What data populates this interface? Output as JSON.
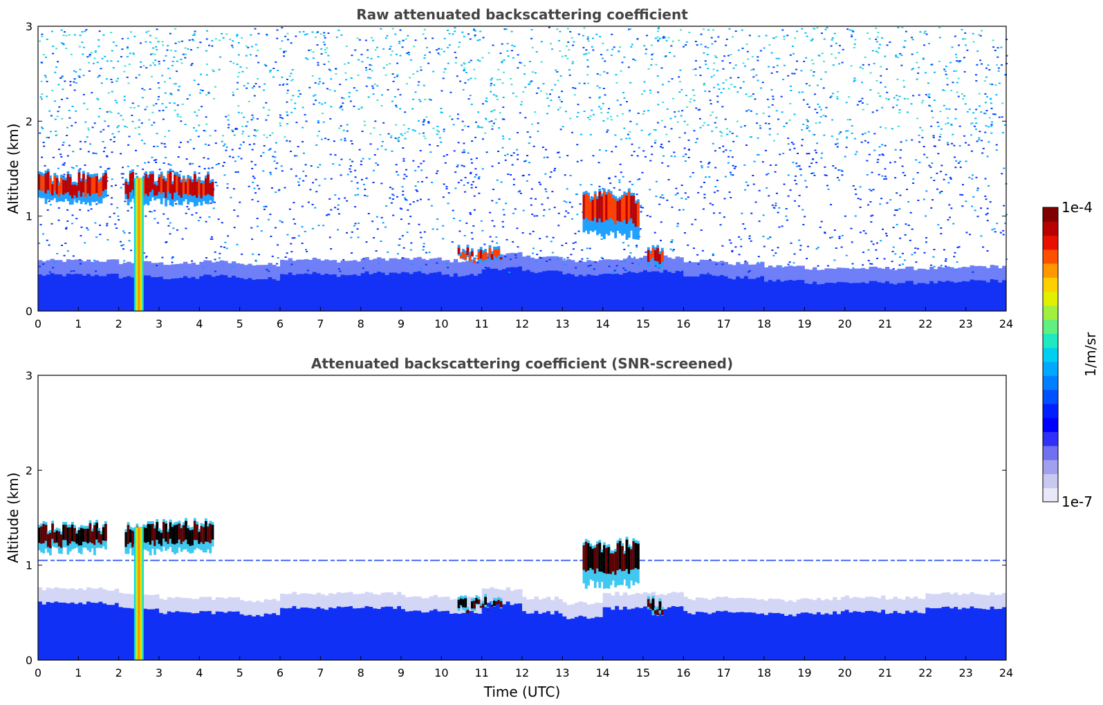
{
  "chart_data": [
    {
      "type": "heatmap",
      "title": "Raw attenuated backscattering coefficient",
      "xlabel": "",
      "ylabel": "Altitude (km)",
      "xlim": [
        0,
        24
      ],
      "ylim": [
        0,
        3
      ],
      "x_ticks": [
        "0",
        "1",
        "2",
        "3",
        "4",
        "5",
        "6",
        "7",
        "8",
        "9",
        "10",
        "11",
        "12",
        "13",
        "14",
        "15",
        "16",
        "17",
        "18",
        "19",
        "20",
        "21",
        "22",
        "23",
        "24"
      ],
      "y_ticks": [
        "0",
        "1",
        "2",
        "3"
      ],
      "boundary_layer_top_km": [
        0.38,
        0.38,
        0.36,
        0.35,
        0.37,
        0.34,
        0.4,
        0.38,
        0.4,
        0.4,
        0.38,
        0.45,
        0.42,
        0.38,
        0.4,
        0.42,
        0.38,
        0.35,
        0.32,
        0.3,
        0.3,
        0.3,
        0.3,
        0.32
      ],
      "features": [
        {
          "kind": "cloud",
          "x0": 0.0,
          "x1": 1.7,
          "base_km": 1.1,
          "top_km": 1.5,
          "value": "1e-4"
        },
        {
          "kind": "cloud",
          "x0": 2.15,
          "x1": 4.35,
          "base_km": 1.1,
          "top_km": 1.5,
          "value": "1e-4"
        },
        {
          "kind": "precipitation",
          "x0": 2.38,
          "x1": 2.62,
          "base_km": 0.0,
          "top_km": 1.4,
          "value": "2e-5"
        },
        {
          "kind": "cloud",
          "x0": 10.4,
          "x1": 11.5,
          "base_km": 0.5,
          "top_km": 0.7,
          "value": "1e-4"
        },
        {
          "kind": "cloud",
          "x0": 13.5,
          "x1": 14.9,
          "base_km": 0.75,
          "top_km": 1.3,
          "value": "1e-4"
        },
        {
          "kind": "cloud",
          "x0": 15.1,
          "x1": 15.5,
          "base_km": 0.45,
          "top_km": 0.7,
          "value": "1e-4"
        }
      ],
      "background": "noise 1e-7 to 1e-6 (blue/cyan speckle above boundary layer)"
    },
    {
      "type": "heatmap",
      "title": "Attenuated backscattering coefficient (SNR-screened)",
      "xlabel": "Time (UTC)",
      "ylabel": "Altitude (km)",
      "xlim": [
        0,
        24
      ],
      "ylim": [
        0,
        3
      ],
      "x_ticks": [
        "0",
        "1",
        "2",
        "3",
        "4",
        "5",
        "6",
        "7",
        "8",
        "9",
        "10",
        "11",
        "12",
        "13",
        "14",
        "15",
        "16",
        "17",
        "18",
        "19",
        "20",
        "21",
        "22",
        "23",
        "24"
      ],
      "y_ticks": [
        "0",
        "1",
        "2",
        "3"
      ],
      "boundary_layer_top_km": [
        0.6,
        0.6,
        0.55,
        0.5,
        0.5,
        0.48,
        0.55,
        0.55,
        0.55,
        0.52,
        0.5,
        0.6,
        0.5,
        0.45,
        0.55,
        0.55,
        0.5,
        0.5,
        0.48,
        0.5,
        0.52,
        0.5,
        0.55,
        0.55
      ],
      "artifact_line_km": 1.05,
      "features": [
        {
          "kind": "cloud",
          "x0": 0.0,
          "x1": 1.7,
          "base_km": 1.1,
          "top_km": 1.5,
          "value": "1e-4"
        },
        {
          "kind": "cloud",
          "x0": 2.15,
          "x1": 4.35,
          "base_km": 1.1,
          "top_km": 1.5,
          "value": "1e-4"
        },
        {
          "kind": "precipitation",
          "x0": 2.38,
          "x1": 2.62,
          "base_km": 0.0,
          "top_km": 1.4,
          "value": "2e-5"
        },
        {
          "kind": "cloud",
          "x0": 10.4,
          "x1": 11.5,
          "base_km": 0.5,
          "top_km": 0.7,
          "value": "1e-4"
        },
        {
          "kind": "cloud",
          "x0": 13.5,
          "x1": 14.9,
          "base_km": 0.75,
          "top_km": 1.3,
          "value": "1e-4"
        },
        {
          "kind": "cloud",
          "x0": 15.1,
          "x1": 15.5,
          "base_km": 0.45,
          "top_km": 0.7,
          "value": "1e-4"
        }
      ]
    }
  ],
  "colorbar": {
    "label": "1/m/sr",
    "max_label": "1e-4",
    "min_label": "1e-7",
    "colors": [
      "#e8e8f8",
      "#c8c8f0",
      "#a0a0ec",
      "#7070f0",
      "#3030f8",
      "#0000ff",
      "#0020ff",
      "#0050ff",
      "#0080ff",
      "#00a8ff",
      "#00d0f0",
      "#20e8c0",
      "#60f080",
      "#a0f040",
      "#e0f000",
      "#ffd000",
      "#ff9800",
      "#ff5000",
      "#e81000",
      "#b80000",
      "#800000"
    ]
  }
}
